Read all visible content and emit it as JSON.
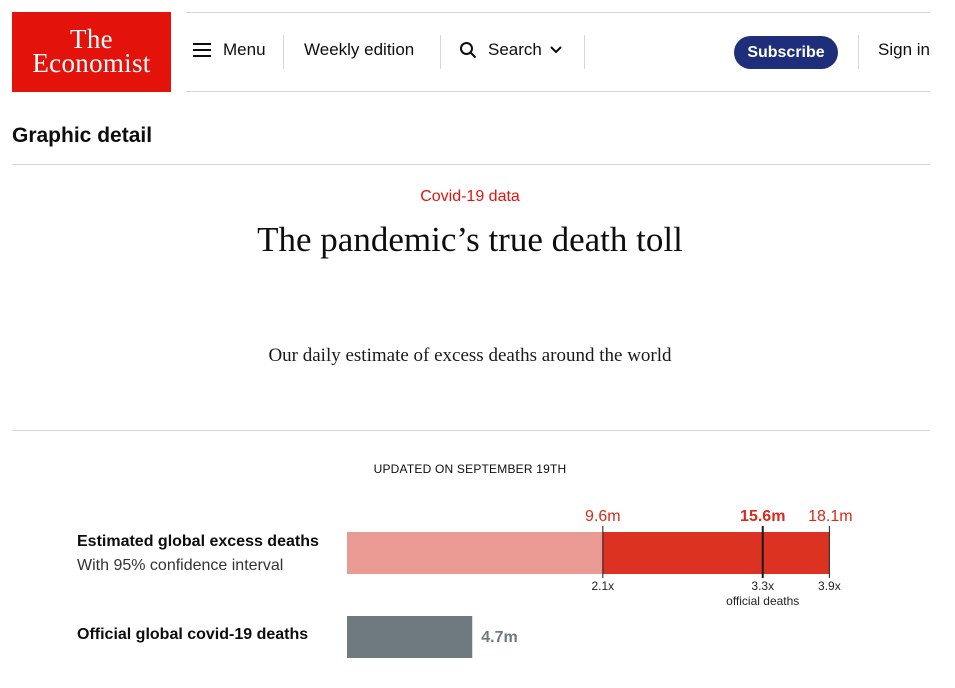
{
  "header": {
    "logo_line1": "The",
    "logo_line2": "Economist",
    "menu_label": "Menu",
    "weekly_label": "Weekly edition",
    "search_label": "Search",
    "subscribe_label": "Subscribe",
    "signin_label": "Sign in"
  },
  "section": {
    "title": "Graphic detail"
  },
  "article": {
    "kicker": "Covid-19 data",
    "headline": "The pandemic’s true death toll",
    "standfirst": "Our daily estimate of excess deaths around the world",
    "updated": "UPDATED ON SEPTEMBER 19TH"
  },
  "colors": {
    "brand_red": "#e3120b",
    "subscribe_blue": "#1f2e7a",
    "bar_light": "#e99a93",
    "bar_dark": "#db3222",
    "bar_official": "#6f7a7f",
    "label_red": "#d9291c"
  },
  "rows": {
    "excess_label": "Estimated global excess deaths",
    "excess_sub": "With 95% confidence interval",
    "official_label": "Official global covid-19 deaths"
  },
  "chart_data": {
    "type": "bar",
    "unit": "m",
    "excess": {
      "lower": 9.6,
      "estimate": 15.6,
      "upper": 18.1,
      "lower_label": "9.6m",
      "estimate_label": "15.6m",
      "upper_label": "18.1m",
      "lower_ratio": "2.1x",
      "estimate_ratio": "3.3x",
      "upper_ratio": "3.9x",
      "ratio_note": "official deaths"
    },
    "official": {
      "value": 4.7,
      "label": "4.7m"
    }
  }
}
